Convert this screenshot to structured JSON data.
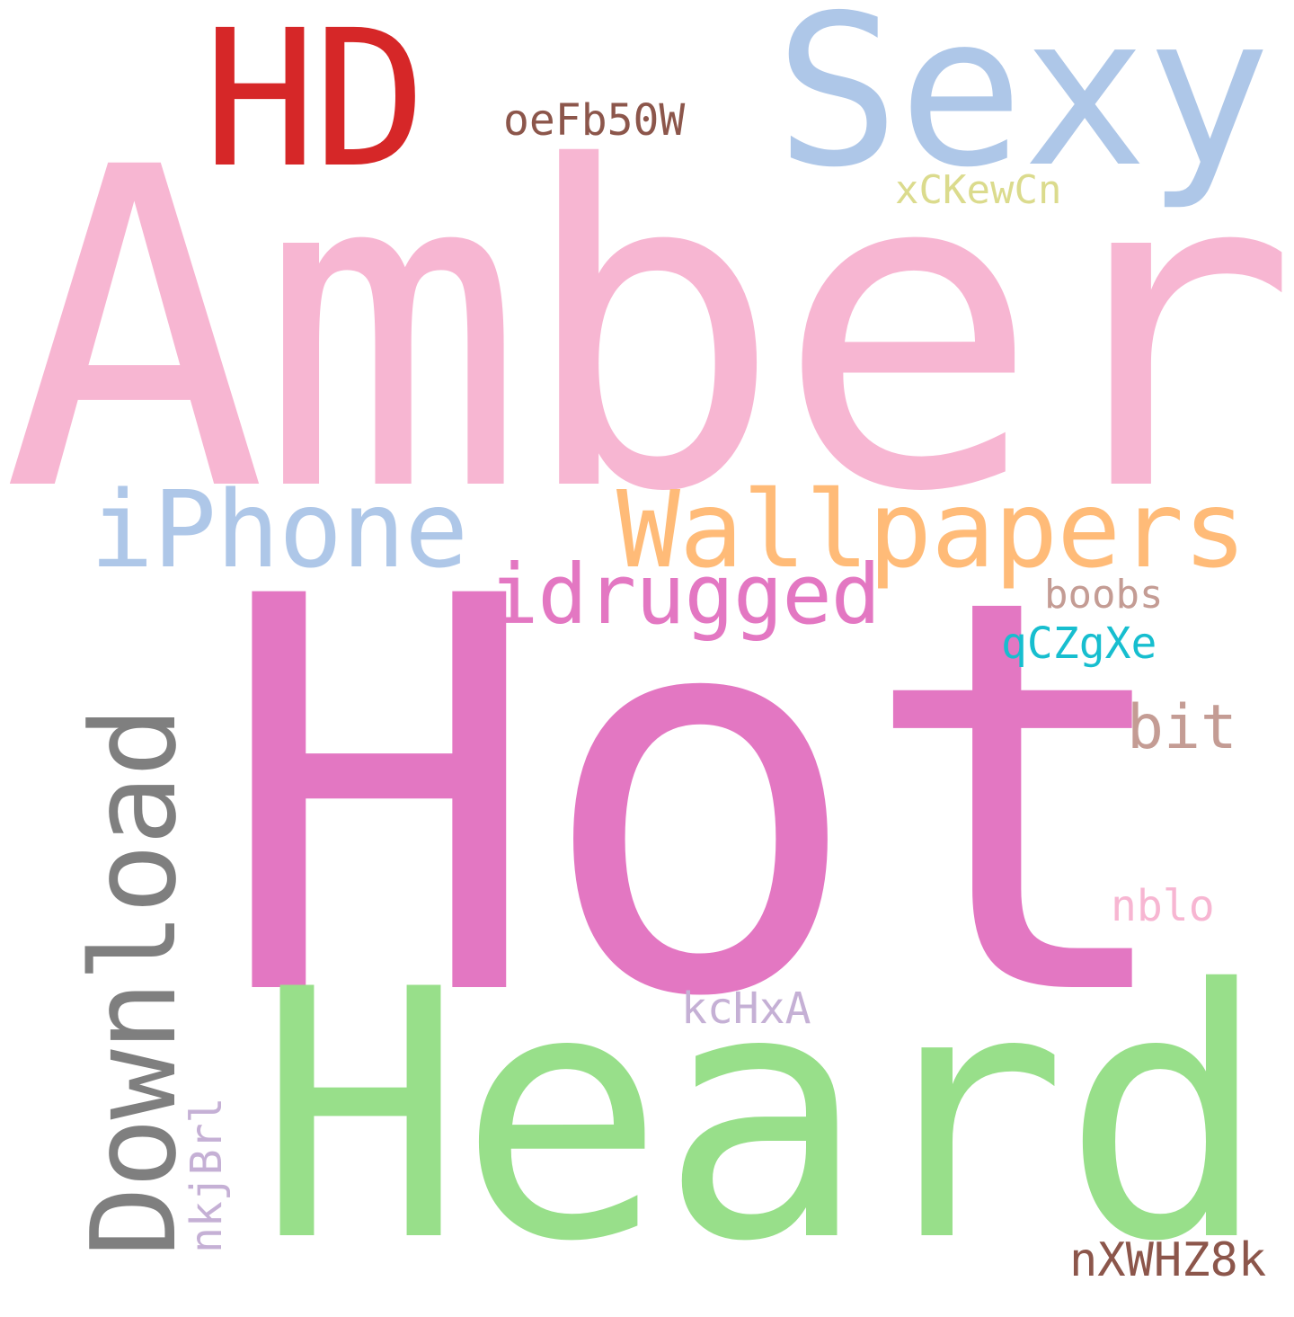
{
  "words": {
    "amber": {
      "text": "Amber",
      "color": "#f7b6d2"
    },
    "hot": {
      "text": "Hot",
      "color": "#e377c2"
    },
    "heard": {
      "text": "Heard",
      "color": "#98df8a"
    },
    "sexy": {
      "text": "Sexy",
      "color": "#aec7e8"
    },
    "hd": {
      "text": "HD",
      "color": "#d62728"
    },
    "download": {
      "text": "Download",
      "color": "#7f7f7f"
    },
    "wallpapers": {
      "text": "Wallpapers",
      "color": "#ffbb78"
    },
    "iphone": {
      "text": "iPhone",
      "color": "#aec7e8"
    },
    "idrugged": {
      "text": "idrugged",
      "color": "#e377c2"
    },
    "oefb50w": {
      "text": "oeFb50W",
      "color": "#8c564b"
    },
    "xckewcn": {
      "text": "xCKewCn",
      "color": "#dbdb8d"
    },
    "boobs": {
      "text": "boobs",
      "color": "#c49c94"
    },
    "qczgxe": {
      "text": "qCZgXe",
      "color": "#17becf"
    },
    "bit": {
      "text": "bit",
      "color": "#c49c94"
    },
    "nblo": {
      "text": "nblo",
      "color": "#f7b6d2"
    },
    "kchxa": {
      "text": "kcHxA",
      "color": "#c5b0d5"
    },
    "nkjbrl": {
      "text": "nkjBrl",
      "color": "#c5b0d5"
    },
    "nxwhz8k": {
      "text": "nXWHZ8k",
      "color": "#8c564b"
    }
  }
}
